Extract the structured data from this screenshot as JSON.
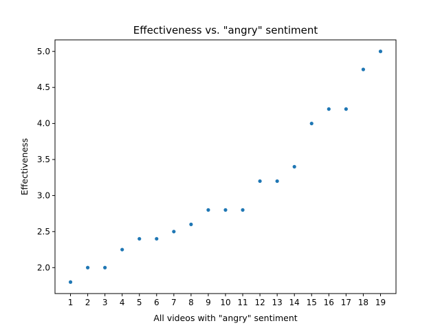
{
  "chart_data": {
    "type": "scatter",
    "title": "Effectiveness vs. \"angry\" sentiment",
    "xlabel": "All videos with \"angry\" sentiment",
    "ylabel": "Effectiveness",
    "x": [
      1,
      2,
      3,
      4,
      5,
      6,
      7,
      8,
      9,
      10,
      11,
      12,
      13,
      14,
      15,
      16,
      17,
      18,
      19
    ],
    "y": [
      1.8,
      2.0,
      2.0,
      2.25,
      2.4,
      2.4,
      2.5,
      2.6,
      2.8,
      2.8,
      2.8,
      3.2,
      3.2,
      3.4,
      4.0,
      4.2,
      4.2,
      4.75,
      5.0
    ],
    "xticks": [
      "1",
      "2",
      "3",
      "4",
      "5",
      "6",
      "7",
      "8",
      "9",
      "10",
      "11",
      "12",
      "13",
      "14",
      "15",
      "16",
      "17",
      "18",
      "19"
    ],
    "yticks": [
      "2.0",
      "2.5",
      "3.0",
      "3.5",
      "4.0",
      "4.5",
      "5.0"
    ],
    "xlim": [
      0.1,
      19.9
    ],
    "ylim": [
      1.64,
      5.16
    ],
    "grid": false,
    "marker_color": "#1f77b4"
  }
}
